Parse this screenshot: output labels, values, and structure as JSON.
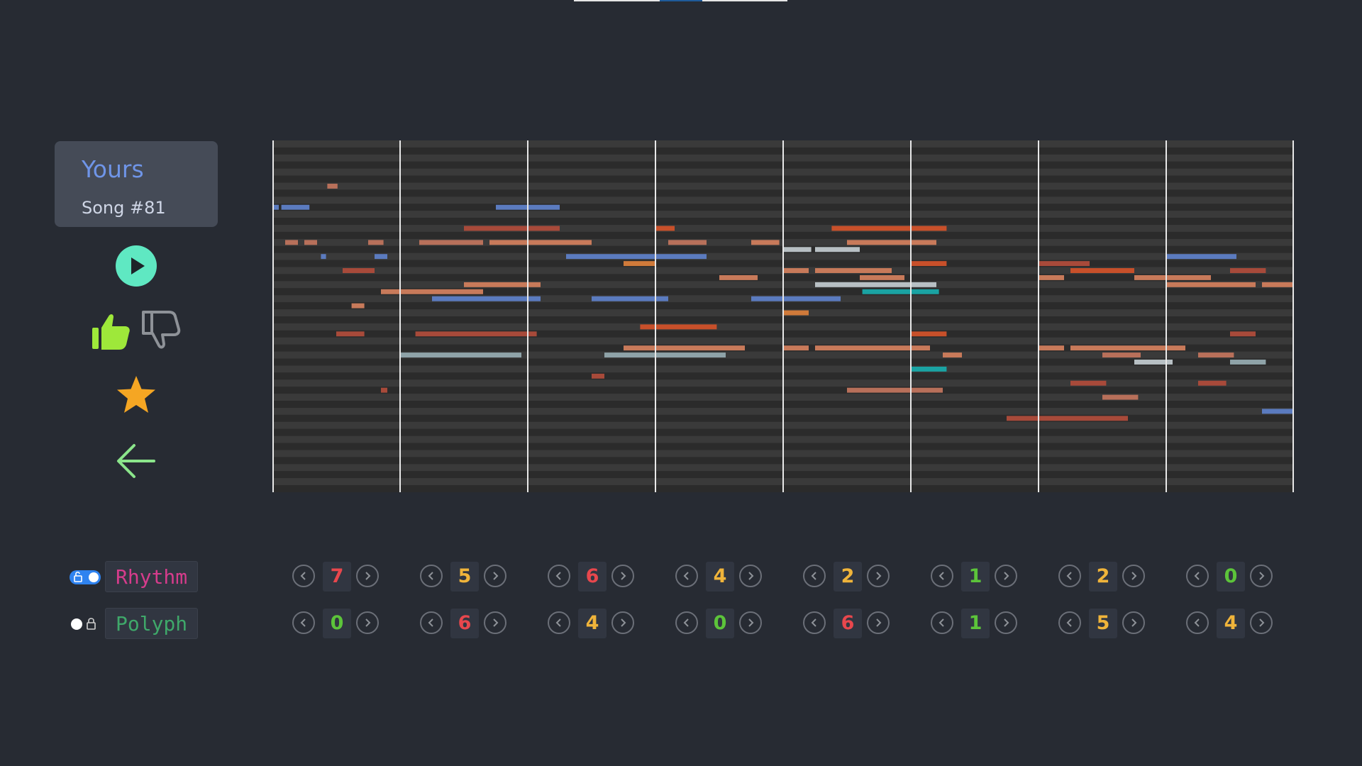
{
  "song": {
    "owner": "Yours",
    "title": "Song #81"
  },
  "icons": {
    "play": "play-icon",
    "like": "thumbs-up-icon",
    "dislike": "thumbs-down-icon",
    "favorite": "star-icon",
    "back": "arrow-left-icon"
  },
  "colors": {
    "background": "#272b33",
    "card": "#454b57",
    "play_button": "#5fe8c2",
    "like_active": "#9ee83a",
    "star": "#f5a623",
    "back_arrow": "#8be58b",
    "rhythm_label": "#d63c8c",
    "polyph_label": "#3fa86a",
    "value_high": "#e8474d",
    "value_mid": "#f0b43a",
    "value_low": "#5cc43a",
    "toggle_on": "#2f83f0"
  },
  "controls": {
    "rhythm": {
      "label": "Rhythm",
      "locked": false,
      "toggle_on": true,
      "values": [
        "7",
        "5",
        "6",
        "4",
        "2",
        "1",
        "2",
        "0"
      ]
    },
    "polyph": {
      "label": "Polyph",
      "locked": true,
      "toggle_on": false,
      "values": [
        "0",
        "6",
        "4",
        "0",
        "6",
        "1",
        "5",
        "4"
      ]
    }
  },
  "piano_roll": {
    "bars": 8,
    "notes": [
      {
        "bar": 0,
        "start": 0.0,
        "len": 0.05,
        "pitch": 9,
        "color": "#5b7bbf"
      },
      {
        "bar": 0,
        "start": 0.07,
        "len": 0.22,
        "pitch": 9,
        "color": "#5b7bbf"
      },
      {
        "bar": 0,
        "start": 0.43,
        "len": 0.08,
        "pitch": 6,
        "color": "#b8705a"
      },
      {
        "bar": 0,
        "start": 0.1,
        "len": 0.1,
        "pitch": 14,
        "color": "#b8705a"
      },
      {
        "bar": 0,
        "start": 0.25,
        "len": 0.1,
        "pitch": 14,
        "color": "#b8705a"
      },
      {
        "bar": 0,
        "start": 0.75,
        "len": 0.12,
        "pitch": 14,
        "color": "#b8705a"
      },
      {
        "bar": 0,
        "start": 0.38,
        "len": 0.04,
        "pitch": 16,
        "color": "#5b7bbf"
      },
      {
        "bar": 0,
        "start": 0.8,
        "len": 0.1,
        "pitch": 16,
        "color": "#5b7bbf"
      },
      {
        "bar": 0,
        "start": 0.55,
        "len": 0.25,
        "pitch": 18,
        "color": "#a84a3a"
      },
      {
        "bar": 0,
        "start": 0.85,
        "len": 0.8,
        "pitch": 21,
        "color": "#c87a5a"
      },
      {
        "bar": 0,
        "start": 0.62,
        "len": 0.1,
        "pitch": 23,
        "color": "#c87a5a"
      },
      {
        "bar": 0,
        "start": 0.5,
        "len": 0.22,
        "pitch": 27,
        "color": "#a84a3a"
      },
      {
        "bar": 0,
        "start": 0.85,
        "len": 0.05,
        "pitch": 35,
        "color": "#a84a3a"
      },
      {
        "bar": 1,
        "start": 0.0,
        "len": 0.95,
        "pitch": 30,
        "color": "#8fa3a8"
      },
      {
        "bar": 1,
        "start": 0.75,
        "len": 0.5,
        "pitch": 9,
        "color": "#5b7bbf"
      },
      {
        "bar": 1,
        "start": 0.5,
        "len": 0.3,
        "pitch": 12,
        "color": "#a84a3a"
      },
      {
        "bar": 1,
        "start": 0.8,
        "len": 0.45,
        "pitch": 12,
        "color": "#a84a3a"
      },
      {
        "bar": 1,
        "start": 0.15,
        "len": 0.5,
        "pitch": 14,
        "color": "#b8705a"
      },
      {
        "bar": 1,
        "start": 0.7,
        "len": 0.8,
        "pitch": 14,
        "color": "#c87a5a"
      },
      {
        "bar": 1,
        "start": 0.5,
        "len": 0.6,
        "pitch": 20,
        "color": "#c87a5a"
      },
      {
        "bar": 1,
        "start": 0.25,
        "len": 0.85,
        "pitch": 22,
        "color": "#5b7bbf"
      },
      {
        "bar": 1,
        "start": 0.12,
        "len": 0.95,
        "pitch": 27,
        "color": "#a84a3a"
      },
      {
        "bar": 2,
        "start": 0.3,
        "len": 1.1,
        "pitch": 16,
        "color": "#5b7bbf"
      },
      {
        "bar": 2,
        "start": 0.75,
        "len": 0.25,
        "pitch": 17,
        "color": "#d07a3a"
      },
      {
        "bar": 2,
        "start": 0.5,
        "len": 0.6,
        "pitch": 22,
        "color": "#5b7bbf"
      },
      {
        "bar": 2,
        "start": 0.6,
        "len": 0.95,
        "pitch": 30,
        "color": "#8fa3a8"
      },
      {
        "bar": 2,
        "start": 0.88,
        "len": 0.6,
        "pitch": 26,
        "color": "#c8502a"
      },
      {
        "bar": 2,
        "start": 0.75,
        "len": 0.95,
        "pitch": 29,
        "color": "#c87a5a"
      },
      {
        "bar": 2,
        "start": 0.5,
        "len": 0.1,
        "pitch": 33,
        "color": "#a84a3a"
      },
      {
        "bar": 3,
        "start": 0.0,
        "len": 0.15,
        "pitch": 12,
        "color": "#c8502a"
      },
      {
        "bar": 3,
        "start": 0.1,
        "len": 0.3,
        "pitch": 14,
        "color": "#b8705a"
      },
      {
        "bar": 3,
        "start": 0.75,
        "len": 0.22,
        "pitch": 14,
        "color": "#c87a5a"
      },
      {
        "bar": 3,
        "start": 0.5,
        "len": 0.3,
        "pitch": 19,
        "color": "#c87a5a"
      },
      {
        "bar": 3,
        "start": 0.75,
        "len": 0.7,
        "pitch": 22,
        "color": "#5b7bbf"
      },
      {
        "bar": 4,
        "start": 0.0,
        "len": 0.22,
        "pitch": 15,
        "color": "#b8c0c4"
      },
      {
        "bar": 4,
        "start": 0.25,
        "len": 0.35,
        "pitch": 15,
        "color": "#b8c0c4"
      },
      {
        "bar": 4,
        "start": 0.38,
        "len": 0.9,
        "pitch": 12,
        "color": "#c8502a"
      },
      {
        "bar": 4,
        "start": 0.5,
        "len": 0.7,
        "pitch": 14,
        "color": "#c87a5a"
      },
      {
        "bar": 4,
        "start": 0.0,
        "len": 0.2,
        "pitch": 18,
        "color": "#c87a5a"
      },
      {
        "bar": 4,
        "start": 0.25,
        "len": 0.6,
        "pitch": 18,
        "color": "#c87a5a"
      },
      {
        "bar": 4,
        "start": 0.6,
        "len": 0.35,
        "pitch": 19,
        "color": "#c87a5a"
      },
      {
        "bar": 4,
        "start": 0.25,
        "len": 0.95,
        "pitch": 20,
        "color": "#b8c0c4"
      },
      {
        "bar": 4,
        "start": 0.62,
        "len": 0.6,
        "pitch": 21,
        "color": "#1aa3a3"
      },
      {
        "bar": 4,
        "start": 0.0,
        "len": 0.2,
        "pitch": 24,
        "color": "#d07a3a"
      },
      {
        "bar": 4,
        "start": 0.0,
        "len": 0.2,
        "pitch": 29,
        "color": "#c87a5a"
      },
      {
        "bar": 4,
        "start": 0.25,
        "len": 0.9,
        "pitch": 29,
        "color": "#c87a5a"
      },
      {
        "bar": 4,
        "start": 0.5,
        "len": 0.75,
        "pitch": 35,
        "color": "#b8705a"
      },
      {
        "bar": 5,
        "start": 0.0,
        "len": 0.28,
        "pitch": 17,
        "color": "#c8502a"
      },
      {
        "bar": 5,
        "start": 0.0,
        "len": 0.28,
        "pitch": 27,
        "color": "#c8502a"
      },
      {
        "bar": 5,
        "start": 0.25,
        "len": 0.15,
        "pitch": 30,
        "color": "#c87a5a"
      },
      {
        "bar": 5,
        "start": 0.0,
        "len": 0.28,
        "pitch": 32,
        "color": "#1aa3a3"
      },
      {
        "bar": 5,
        "start": 0.75,
        "len": 0.95,
        "pitch": 39,
        "color": "#a84a3a"
      },
      {
        "bar": 6,
        "start": 0.0,
        "len": 0.4,
        "pitch": 17,
        "color": "#a84a3a"
      },
      {
        "bar": 6,
        "start": 0.25,
        "len": 0.5,
        "pitch": 18,
        "color": "#c8502a"
      },
      {
        "bar": 6,
        "start": 0.0,
        "len": 0.2,
        "pitch": 19,
        "color": "#c87a5a"
      },
      {
        "bar": 6,
        "start": 0.75,
        "len": 0.6,
        "pitch": 19,
        "color": "#c87a5a"
      },
      {
        "bar": 6,
        "start": 0.0,
        "len": 0.2,
        "pitch": 29,
        "color": "#c87a5a"
      },
      {
        "bar": 6,
        "start": 0.25,
        "len": 0.9,
        "pitch": 29,
        "color": "#c87a5a"
      },
      {
        "bar": 6,
        "start": 0.5,
        "len": 0.3,
        "pitch": 30,
        "color": "#b8705a"
      },
      {
        "bar": 6,
        "start": 0.75,
        "len": 0.3,
        "pitch": 31,
        "color": "#b8c0c4"
      },
      {
        "bar": 6,
        "start": 0.25,
        "len": 0.28,
        "pitch": 34,
        "color": "#a84a3a"
      },
      {
        "bar": 6,
        "start": 0.5,
        "len": 0.28,
        "pitch": 36,
        "color": "#b8705a"
      },
      {
        "bar": 7,
        "start": 0.0,
        "len": 0.55,
        "pitch": 16,
        "color": "#5b7bbf"
      },
      {
        "bar": 7,
        "start": 0.5,
        "len": 0.28,
        "pitch": 18,
        "color": "#a84a3a"
      },
      {
        "bar": 7,
        "start": 0.0,
        "len": 0.7,
        "pitch": 20,
        "color": "#c87a5a"
      },
      {
        "bar": 7,
        "start": 0.75,
        "len": 0.25,
        "pitch": 20,
        "color": "#c87a5a"
      },
      {
        "bar": 7,
        "start": 0.5,
        "len": 0.2,
        "pitch": 27,
        "color": "#a84a3a"
      },
      {
        "bar": 7,
        "start": 0.25,
        "len": 0.28,
        "pitch": 30,
        "color": "#b8705a"
      },
      {
        "bar": 7,
        "start": 0.5,
        "len": 0.28,
        "pitch": 31,
        "color": "#8fa3a8"
      },
      {
        "bar": 7,
        "start": 0.25,
        "len": 0.22,
        "pitch": 34,
        "color": "#a84a3a"
      },
      {
        "bar": 7,
        "start": 0.75,
        "len": 0.25,
        "pitch": 38,
        "color": "#5b7bbf"
      }
    ]
  }
}
